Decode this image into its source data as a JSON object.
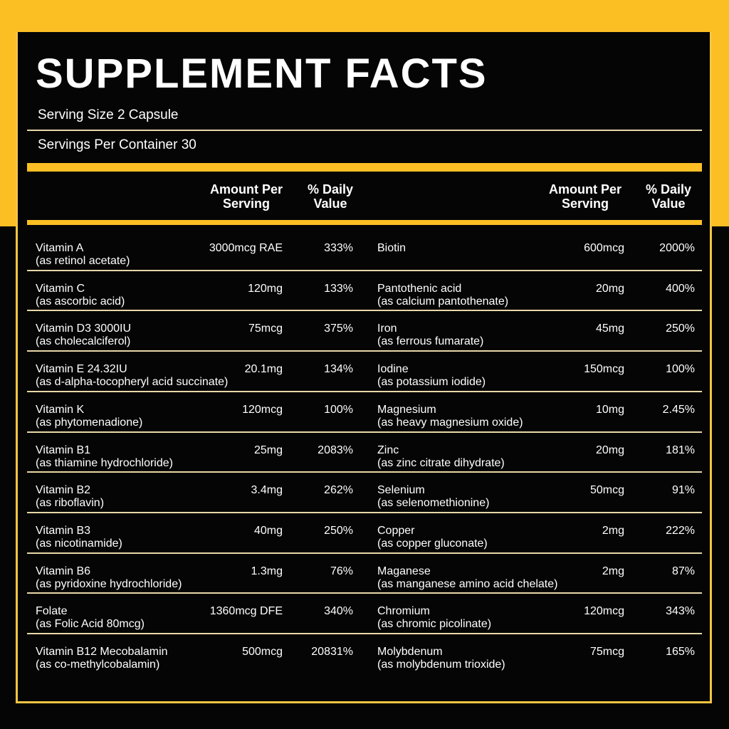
{
  "title": "SUPPLEMENT FACTS",
  "serving_size": "Serving Size 2 Capsule",
  "servings_per_container": "Servings Per Container 30",
  "headers": {
    "amount_line1": "Amount Per",
    "amount_line2": "Serving",
    "dv_line1": "% Daily",
    "dv_line2": "Value"
  },
  "colors": {
    "accent": "#fbbf24",
    "background": "#050505",
    "text": "#ffffff"
  },
  "left": [
    {
      "name": "Vitamin A",
      "source": "(as retinol acetate)",
      "amount": "3000mcg RAE",
      "dv": "333%"
    },
    {
      "name": "Vitamin C",
      "source": "(as ascorbic acid)",
      "amount": "120mg",
      "dv": "133%"
    },
    {
      "name": "Vitamin D3 3000IU",
      "source": "(as cholecalciferol)",
      "amount": "75mcg",
      "dv": "375%"
    },
    {
      "name": "Vitamin E 24.32IU",
      "source": "(as d-alpha-tocopheryl acid succinate)",
      "amount": "20.1mg",
      "dv": "134%"
    },
    {
      "name": "Vitamin K",
      "source": "(as phytomenadione)",
      "amount": "120mcg",
      "dv": "100%"
    },
    {
      "name": "Vitamin B1",
      "source": "(as thiamine hydrochloride)",
      "amount": "25mg",
      "dv": "2083%"
    },
    {
      "name": "Vitamin B2",
      "source": "(as riboflavin)",
      "amount": "3.4mg",
      "dv": "262%"
    },
    {
      "name": "Vitamin B3",
      "source": "(as nicotinamide)",
      "amount": "40mg",
      "dv": "250%"
    },
    {
      "name": "Vitamin B6",
      "source": "(as pyridoxine hydrochloride)",
      "amount": "1.3mg",
      "dv": "76%"
    },
    {
      "name": "Folate",
      "source": "(as Folic Acid 80mcg)",
      "amount": "1360mcg DFE",
      "dv": "340%"
    },
    {
      "name": "Vitamin B12 Mecobalamin",
      "source": "(as co-methylcobalamin)",
      "amount": "500mcg",
      "dv": "20831%"
    }
  ],
  "right": [
    {
      "name": "Biotin",
      "source": "",
      "amount": "600mcg",
      "dv": "2000%"
    },
    {
      "name": "Pantothenic acid",
      "source": "(as calcium pantothenate)",
      "amount": "20mg",
      "dv": "400%"
    },
    {
      "name": "Iron",
      "source": "(as ferrous fumarate)",
      "amount": "45mg",
      "dv": "250%"
    },
    {
      "name": "Iodine",
      "source": "(as potassium iodide)",
      "amount": "150mcg",
      "dv": "100%"
    },
    {
      "name": "Magnesium",
      "source": "(as heavy magnesium oxide)",
      "amount": "10mg",
      "dv": "2.45%"
    },
    {
      "name": "Zinc",
      "source": "(as zinc citrate dihydrate)",
      "amount": "20mg",
      "dv": "181%"
    },
    {
      "name": "Selenium",
      "source": "(as selenomethionine)",
      "amount": "50mcg",
      "dv": "91%"
    },
    {
      "name": "Copper",
      "source": "(as copper gluconate)",
      "amount": "2mg",
      "dv": "222%"
    },
    {
      "name": "Maganese",
      "source": "(as manganese amino acid chelate)",
      "amount": "2mg",
      "dv": "87%"
    },
    {
      "name": "Chromium",
      "source": "(as chromic picolinate)",
      "amount": "120mcg",
      "dv": "343%"
    },
    {
      "name": "Molybdenum",
      "source": "(as molybdenum trioxide)",
      "amount": "75mcg",
      "dv": "165%"
    }
  ]
}
